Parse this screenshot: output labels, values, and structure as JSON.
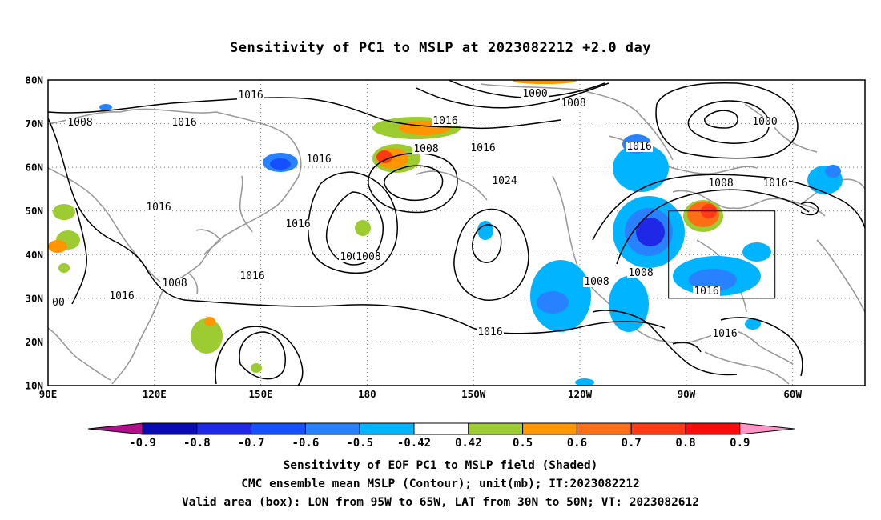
{
  "title": "Sensitivity of PC1 to MSLP at 2023082212 +2.0 day",
  "captions": [
    "Sensitivity of EOF PC1 to MSLP field (Shaded)",
    "CMC ensemble mean MSLP (Contour); unit(mb); IT:2023082212",
    "Valid area (box): LON from 95W to 65W, LAT from 30N to 50N; VT: 2023082612"
  ],
  "map": {
    "lat_labels": [
      "80N",
      "70N",
      "60N",
      "50N",
      "40N",
      "30N",
      "20N",
      "10N"
    ],
    "lon_labels": [
      "90E",
      "120E",
      "150E",
      "180",
      "150W",
      "120W",
      "90W",
      "60W"
    ],
    "valid_box": {
      "lon_from": "95W",
      "lon_to": "65W",
      "lat_from": "30N",
      "lat_to": "50N"
    },
    "contour_labels": [
      "1016",
      "1008",
      "1016",
      "1000",
      "1008",
      "1016",
      "1008",
      "1016",
      "1000",
      "1016",
      "1016",
      "1024",
      "1016",
      "1008",
      "1016",
      "1008",
      "1016",
      "1016",
      "1008",
      "1008",
      "1008",
      "1016",
      "1016",
      "1016",
      "1016",
      "00",
      "1008",
      "1008"
    ]
  },
  "colorbar": {
    "labels": [
      "-0.9",
      "-0.8",
      "-0.7",
      "-0.6",
      "-0.5",
      "-0.42",
      "0.42",
      "0.5",
      "0.6",
      "0.7",
      "0.8",
      "0.9"
    ],
    "colors": [
      "#b0108c",
      "#0a0ab4",
      "#1e28e6",
      "#1450ff",
      "#2882ff",
      "#00b4ff",
      "#ffffff",
      "#9ccc32",
      "#ff9600",
      "#ff6e14",
      "#ff3a14",
      "#ff0a0a",
      "#ff96c8"
    ]
  }
}
